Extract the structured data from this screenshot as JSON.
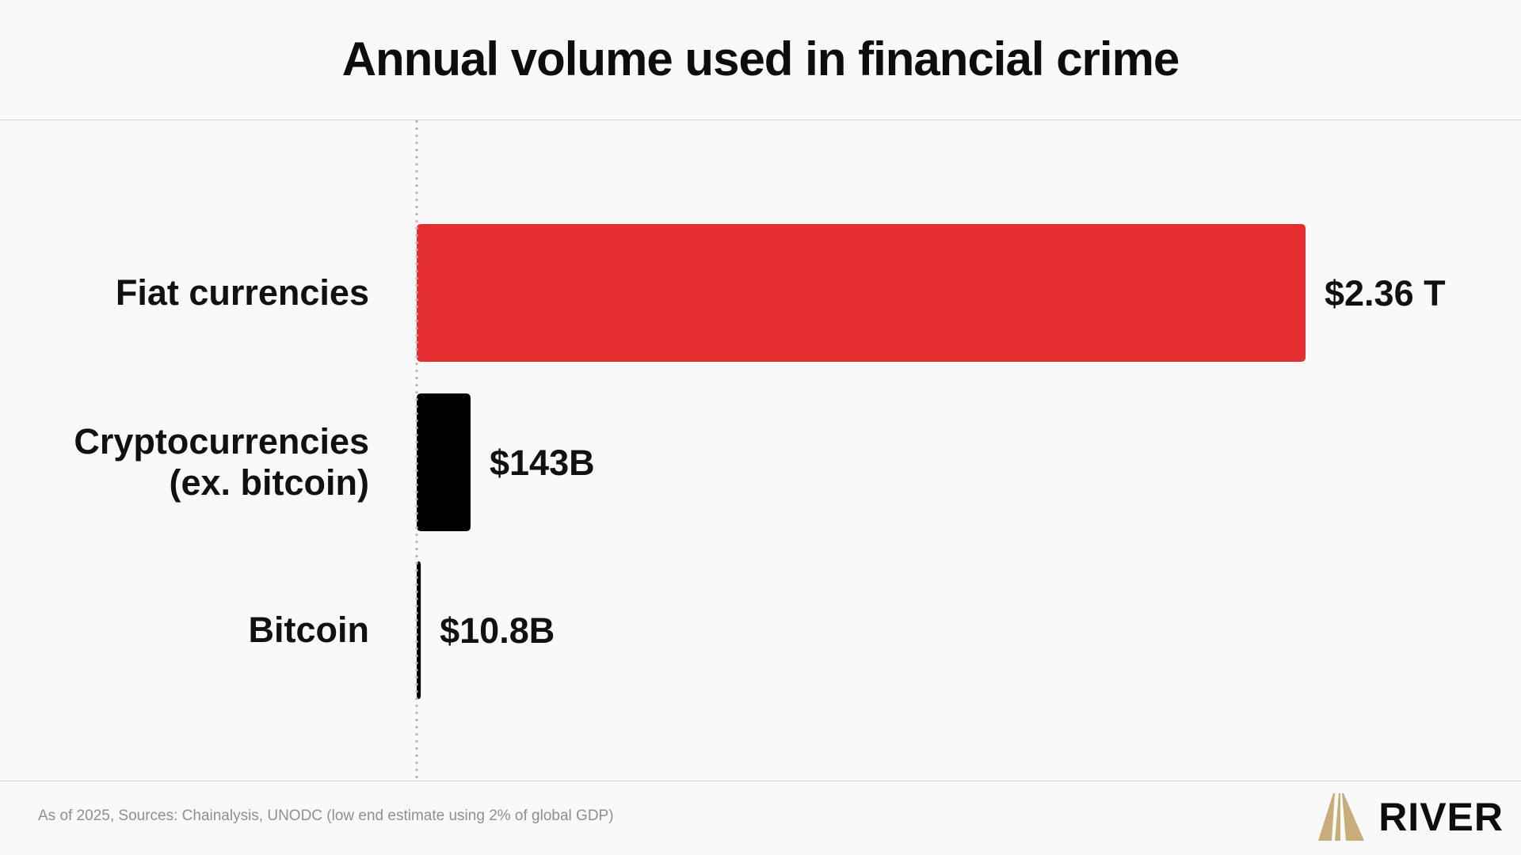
{
  "chart_data": {
    "type": "bar",
    "orientation": "horizontal",
    "title": "Annual volume used in financial crime",
    "categories": [
      [
        "Fiat currencies"
      ],
      [
        "Cryptocurrencies",
        "(ex. bitcoin)"
      ],
      [
        "Bitcoin"
      ]
    ],
    "values": [
      2360,
      143,
      10.8
    ],
    "unit": "billion USD",
    "value_labels": [
      "$2.36 T",
      "$143B",
      "$10.8B"
    ],
    "colors": [
      "#e52e2f",
      "#000000",
      "#000000"
    ],
    "xlim": [
      0,
      2360
    ],
    "grid": false,
    "legend": "none"
  },
  "footer": {
    "note": "As of 2025, Sources: Chainalysis, UNODC (low end estimate using 2% of global GDP)"
  },
  "brand": {
    "name": "RIVER",
    "logo_icon": "river-logo-icon",
    "logo_color": "#c8ad7a"
  }
}
